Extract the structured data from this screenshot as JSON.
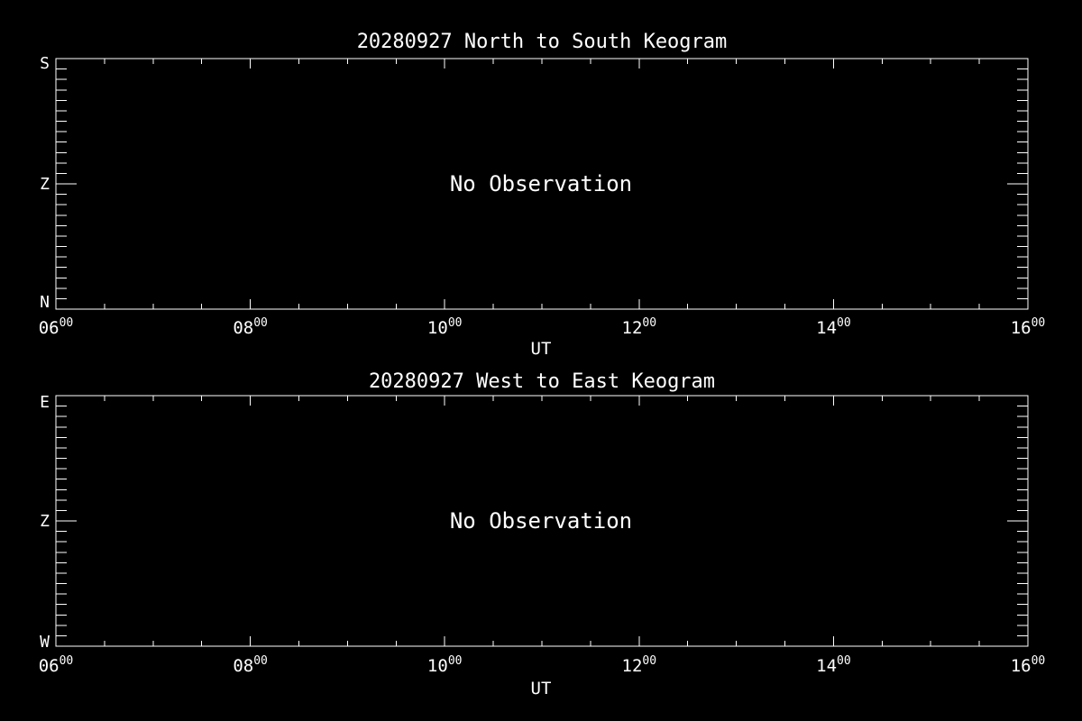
{
  "page": {
    "background": "#000000",
    "foreground": "#ffffff"
  },
  "chart_data": [
    {
      "type": "heatmap",
      "title": "20280927 North to South Keogram",
      "xlabel": "UT",
      "annotation": "No Observation",
      "x_tick_labels": [
        "06",
        "08",
        "10",
        "12",
        "14",
        "16"
      ],
      "x_tick_superscript": "00",
      "x_axis_range_hours_ut": [
        6,
        16
      ],
      "x_minor_divisions": 4,
      "y_tick_labels": {
        "top": "S",
        "middle": "Z",
        "bottom": "N"
      },
      "y_minor_divisions": 12,
      "grid": false,
      "legend": false,
      "data_points": []
    },
    {
      "type": "heatmap",
      "title": "20280927 West to East Keogram",
      "xlabel": "UT",
      "annotation": "No Observation",
      "x_tick_labels": [
        "06",
        "08",
        "10",
        "12",
        "14",
        "16"
      ],
      "x_tick_superscript": "00",
      "x_axis_range_hours_ut": [
        6,
        16
      ],
      "x_minor_divisions": 4,
      "y_tick_labels": {
        "top": "E",
        "middle": "Z",
        "bottom": "W"
      },
      "y_minor_divisions": 12,
      "grid": false,
      "legend": false,
      "data_points": []
    }
  ]
}
